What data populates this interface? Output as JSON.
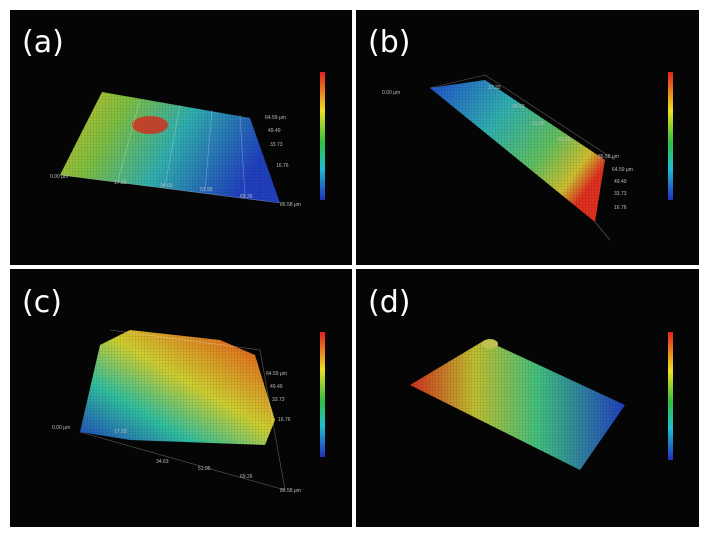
{
  "panels": [
    {
      "label": "(a)",
      "axis_labels": [
        "0.00 µm",
        "17.33",
        "34.63",
        "51.95",
        "69.26",
        "86.58 µm",
        "64.59 µm",
        "49.49",
        "33.73",
        "16.76"
      ]
    },
    {
      "label": "(b)",
      "axis_labels": [
        "0.00 µm",
        "17.33",
        "34.63",
        "51.95",
        "69.26",
        "86.58 µm",
        "64.59 µm",
        "49.49",
        "33.73",
        "16.76"
      ]
    },
    {
      "label": "(c)",
      "axis_labels": [
        "0.00 µm",
        "17.33",
        "34.63",
        "51.95",
        "69.26",
        "86.58 µm",
        "64.59 µm",
        "49.49",
        "33.73",
        "16.76"
      ]
    },
    {
      "label": "(d)",
      "axis_labels": []
    }
  ]
}
